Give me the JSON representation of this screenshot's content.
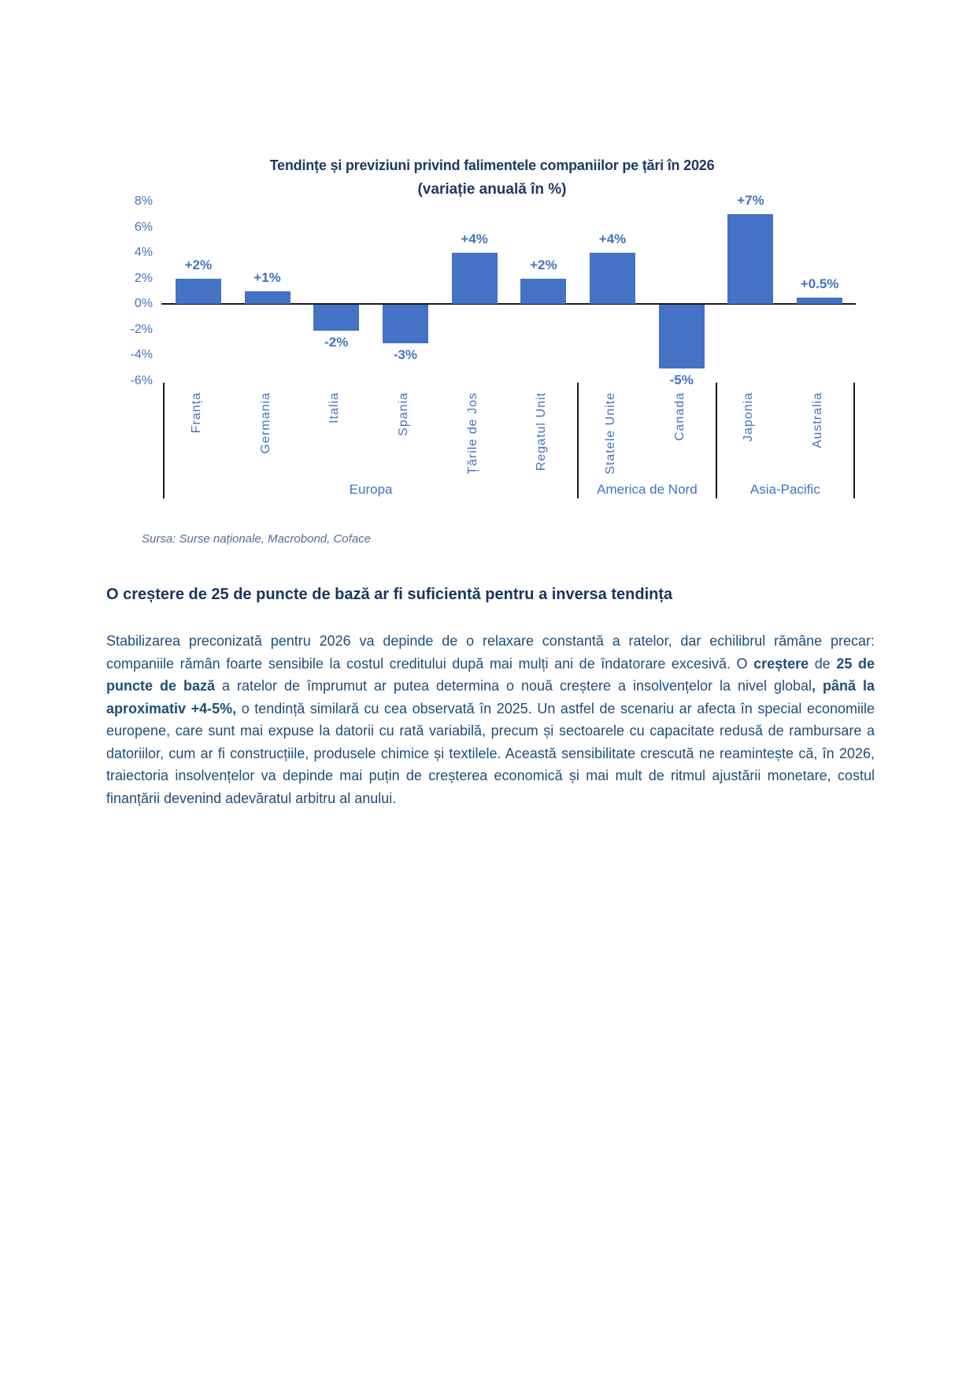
{
  "chart_data": {
    "type": "bar",
    "title": "Tendințe și previziuni privind falimentele companiilor pe țări în 2026",
    "subtitle": "(variație anuală în %)",
    "categories": [
      "Franța",
      "Germania",
      "Italia",
      "Spania",
      "Țările de Jos",
      "Regatul Unit",
      "Statele Unite",
      "Canada",
      "Japonia",
      "Australia"
    ],
    "values": [
      2,
      1,
      -2,
      -3,
      4,
      2,
      4,
      -5,
      7,
      0.5
    ],
    "bar_labels": [
      "+2%",
      "+1%",
      "-2%",
      "-3%",
      "+4%",
      "+2%",
      "+4%",
      "-5%",
      "+7%",
      "+0.5%"
    ],
    "groups": [
      {
        "label": "Europa",
        "span": 6
      },
      {
        "label": "America de Nord",
        "span": 2
      },
      {
        "label": "Asia-Pacific",
        "span": 2
      }
    ],
    "y_ticks": [
      "8%",
      "6%",
      "4%",
      "2%",
      "0%",
      "-2%",
      "-4%",
      "-6%"
    ],
    "y_tick_values": [
      8,
      6,
      4,
      2,
      0,
      -2,
      -4,
      -6
    ],
    "ylim": [
      -6,
      8
    ],
    "grid": false,
    "legend": false,
    "bar_color": "#4472C4",
    "label_color": "#4472C4",
    "title_color": "#1F3864",
    "axis_line_color": "#1a1a1a"
  },
  "source_note": "Sursa: Surse naționale, Macrobond, Coface",
  "section": {
    "heading": "O creștere de 25 de puncte de bază ar fi suficientă pentru a inversa tendința",
    "paragraph_segments": [
      {
        "text": "Stabilizarea preconizată pentru 2026 va depinde de o relaxare constantă a ratelor, dar echilibrul rămâne precar: companiile rămân foarte sensibile la costul creditului după mai mulți ani de îndatorare excesivă. O ",
        "bold": false
      },
      {
        "text": "creștere",
        "bold": true
      },
      {
        "text": " de ",
        "bold": false
      },
      {
        "text": "25 de puncte de bază",
        "bold": true
      },
      {
        "text": " a ratelor de împrumut ar putea determina o nouă creștere a insolvențelor la nivel global",
        "bold": false
      },
      {
        "text": ", până la aproximativ +4-5%,",
        "bold": true
      },
      {
        "text": " o tendință similară cu cea observată în 2025. Un astfel de scenariu ar afecta în special economiile europene, care sunt mai expuse la datorii cu rată variabilă, precum și sectoarele cu capacitate redusă de rambursare a datoriilor, cum ar fi construcțiile, produsele chimice și textilele. Această sensibilitate crescută ne reamintește că, în 2026, traiectoria insolvențelor va depinde mai puțin de creșterea economică și mai mult de ritmul ajustării monetare, costul finanțării devenind adevăratul arbitru al anului.",
        "bold": false
      }
    ]
  }
}
